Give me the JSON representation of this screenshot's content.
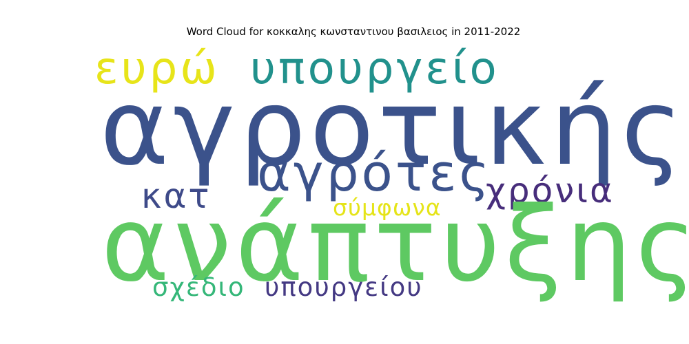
{
  "title": "Word Cloud for κοκκαλης κωνσταντινου βασιλειος in 2011-2022",
  "words": [
    {
      "key": "agrotikis",
      "text": "αγροτικής",
      "color": "#3b528b"
    },
    {
      "key": "anaptyxis",
      "text": "ανάπτυξης",
      "color": "#5ec962"
    },
    {
      "key": "ypourgeio",
      "text": "υπουργείο",
      "color": "#21918c"
    },
    {
      "key": "evro",
      "text": "ευρώ",
      "color": "#e7e419"
    },
    {
      "key": "agrotes",
      "text": "αγρότες",
      "color": "#3b528b"
    },
    {
      "key": "kat",
      "text": "κατ",
      "color": "#3e4a89"
    },
    {
      "key": "chronia",
      "text": "χρόνια",
      "color": "#472d7b"
    },
    {
      "key": "symfona",
      "text": "σύμφωνα",
      "color": "#e5e419"
    },
    {
      "key": "schedio",
      "text": "σχέδιο",
      "color": "#35b779"
    },
    {
      "key": "ypourgeiou",
      "text": "υπουργείου",
      "color": "#443983"
    }
  ]
}
